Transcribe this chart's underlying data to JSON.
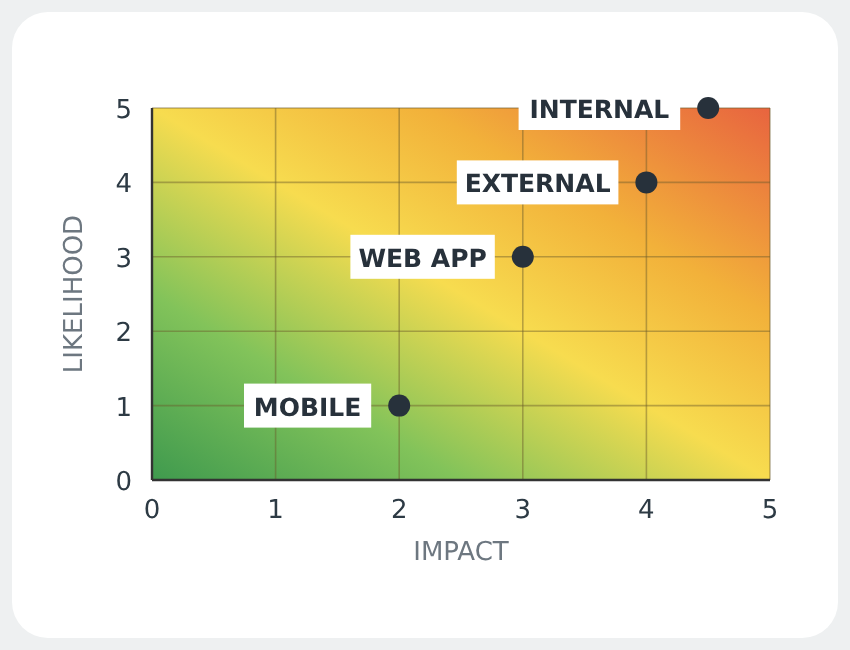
{
  "chart_data": {
    "type": "scatter",
    "xlabel": "IMPACT",
    "ylabel": "LIKELIHOOD",
    "x": [
      2,
      3,
      4,
      4.5
    ],
    "series": [
      {
        "color": "#27313b",
        "values": [
          1,
          3,
          4,
          5
        ]
      }
    ],
    "xlim": [
      0,
      5
    ],
    "ylim": [
      0,
      5
    ],
    "xticks": [
      0,
      1,
      2,
      3,
      4,
      5
    ],
    "yticks": [
      0,
      1,
      2,
      3,
      4,
      5
    ],
    "grid": true,
    "marker": "circle",
    "annotations": [
      {
        "text": "MOBILE",
        "x": 2,
        "y": 1
      },
      {
        "text": "WEB APP",
        "x": 3,
        "y": 3
      },
      {
        "text": "EXTERNAL",
        "x": 4,
        "y": 4
      },
      {
        "text": "INTERNAL",
        "x": 4.5,
        "y": 5
      }
    ]
  }
}
